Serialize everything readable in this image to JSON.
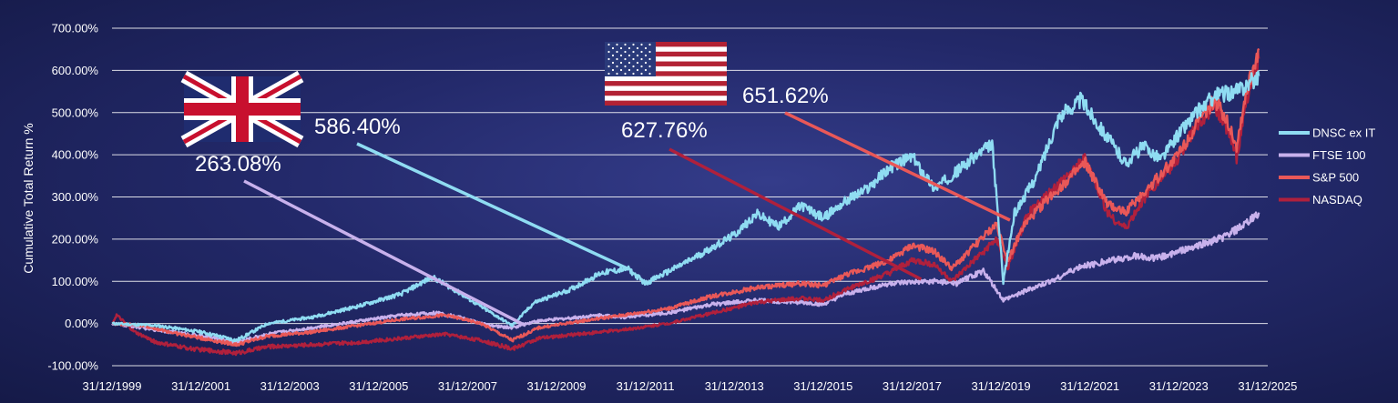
{
  "chart_data": {
    "type": "line",
    "ylabel": "Cumulative Total Return %",
    "xlabel": "",
    "ylim": [
      -100,
      700
    ],
    "y_ticks": [
      "-100.00%",
      "0.00%",
      "100.00%",
      "200.00%",
      "300.00%",
      "400.00%",
      "500.00%",
      "600.00%",
      "700.00%"
    ],
    "x_ticks": [
      "31/12/1999",
      "31/12/2001",
      "31/12/2003",
      "31/12/2005",
      "31/12/2007",
      "31/12/2009",
      "31/12/2011",
      "31/12/2013",
      "31/12/2015",
      "31/12/2017",
      "31/12/2019",
      "31/12/2021",
      "31/12/2023",
      "31/12/2025"
    ],
    "xlim": [
      1999.997,
      2026.0
    ],
    "grid": true,
    "legend_position": "right",
    "series": [
      {
        "name": "DNSC ex IT",
        "color": "#8fdcf2",
        "points": [
          [
            2000.0,
            0
          ],
          [
            2001.0,
            -5
          ],
          [
            2002.0,
            -20
          ],
          [
            2002.8,
            -40
          ],
          [
            2003.5,
            0
          ],
          [
            2004.5,
            15
          ],
          [
            2005.5,
            40
          ],
          [
            2006.5,
            70
          ],
          [
            2007.2,
            110
          ],
          [
            2007.7,
            80
          ],
          [
            2008.3,
            40
          ],
          [
            2009.0,
            -5
          ],
          [
            2009.5,
            50
          ],
          [
            2010.3,
            80
          ],
          [
            2011.0,
            120
          ],
          [
            2011.6,
            130
          ],
          [
            2012.0,
            95
          ],
          [
            2013.0,
            150
          ],
          [
            2014.0,
            210
          ],
          [
            2014.5,
            260
          ],
          [
            2015.0,
            230
          ],
          [
            2015.5,
            280
          ],
          [
            2016.0,
            250
          ],
          [
            2016.5,
            290
          ],
          [
            2017.0,
            320
          ],
          [
            2017.5,
            370
          ],
          [
            2018.0,
            395
          ],
          [
            2018.5,
            320
          ],
          [
            2019.0,
            360
          ],
          [
            2019.4,
            395
          ],
          [
            2019.8,
            425
          ],
          [
            2020.05,
            100
          ],
          [
            2020.3,
            260
          ],
          [
            2020.8,
            350
          ],
          [
            2021.3,
            490
          ],
          [
            2021.8,
            530
          ],
          [
            2022.4,
            440
          ],
          [
            2022.8,
            380
          ],
          [
            2023.2,
            420
          ],
          [
            2023.6,
            390
          ],
          [
            2024.0,
            450
          ],
          [
            2024.4,
            500
          ],
          [
            2024.8,
            540
          ],
          [
            2025.3,
            550
          ],
          [
            2025.8,
            586.4
          ]
        ]
      },
      {
        "name": "FTSE 100",
        "color": "#c8b1ec",
        "points": [
          [
            2000.0,
            0
          ],
          [
            2001.0,
            -15
          ],
          [
            2002.0,
            -30
          ],
          [
            2002.8,
            -45
          ],
          [
            2003.5,
            -25
          ],
          [
            2004.5,
            -10
          ],
          [
            2005.5,
            5
          ],
          [
            2006.5,
            20
          ],
          [
            2007.3,
            25
          ],
          [
            2007.8,
            15
          ],
          [
            2008.5,
            -5
          ],
          [
            2009.0,
            -10
          ],
          [
            2009.5,
            5
          ],
          [
            2010.5,
            15
          ],
          [
            2011.0,
            20
          ],
          [
            2011.5,
            15
          ],
          [
            2012.5,
            25
          ],
          [
            2013.5,
            45
          ],
          [
            2014.5,
            55
          ],
          [
            2015.5,
            50
          ],
          [
            2016.0,
            45
          ],
          [
            2016.5,
            70
          ],
          [
            2017.5,
            95
          ],
          [
            2018.5,
            100
          ],
          [
            2019.0,
            95
          ],
          [
            2019.6,
            125
          ],
          [
            2020.05,
            55
          ],
          [
            2020.5,
            75
          ],
          [
            2021.0,
            95
          ],
          [
            2021.8,
            135
          ],
          [
            2022.5,
            150
          ],
          [
            2023.0,
            160
          ],
          [
            2023.5,
            155
          ],
          [
            2024.0,
            170
          ],
          [
            2024.6,
            190
          ],
          [
            2025.0,
            205
          ],
          [
            2025.5,
            235
          ],
          [
            2025.8,
            263.08
          ]
        ]
      },
      {
        "name": "S&P 500",
        "color": "#e95858",
        "points": [
          [
            2000.0,
            0
          ],
          [
            2000.7,
            -5
          ],
          [
            2001.5,
            -25
          ],
          [
            2002.8,
            -50
          ],
          [
            2003.5,
            -30
          ],
          [
            2004.5,
            -20
          ],
          [
            2005.5,
            -5
          ],
          [
            2006.5,
            10
          ],
          [
            2007.5,
            20
          ],
          [
            2008.3,
            0
          ],
          [
            2009.0,
            -40
          ],
          [
            2009.6,
            -10
          ],
          [
            2010.5,
            5
          ],
          [
            2011.5,
            20
          ],
          [
            2012.5,
            35
          ],
          [
            2013.5,
            65
          ],
          [
            2014.5,
            85
          ],
          [
            2015.5,
            95
          ],
          [
            2016.0,
            90
          ],
          [
            2016.5,
            115
          ],
          [
            2017.5,
            150
          ],
          [
            2018.0,
            185
          ],
          [
            2018.5,
            170
          ],
          [
            2018.9,
            130
          ],
          [
            2019.5,
            195
          ],
          [
            2019.9,
            235
          ],
          [
            2020.15,
            150
          ],
          [
            2020.5,
            230
          ],
          [
            2021.0,
            290
          ],
          [
            2021.9,
            380
          ],
          [
            2022.4,
            280
          ],
          [
            2022.8,
            265
          ],
          [
            2023.3,
            320
          ],
          [
            2023.9,
            390
          ],
          [
            2024.4,
            470
          ],
          [
            2024.8,
            530
          ],
          [
            2025.1,
            480
          ],
          [
            2025.3,
            420
          ],
          [
            2025.5,
            540
          ],
          [
            2025.8,
            651.62
          ]
        ]
      },
      {
        "name": "NASDAQ",
        "color": "#b0203c",
        "points": [
          [
            2000.0,
            0
          ],
          [
            2000.1,
            20
          ],
          [
            2000.5,
            -20
          ],
          [
            2001.0,
            -45
          ],
          [
            2001.8,
            -60
          ],
          [
            2002.8,
            -70
          ],
          [
            2003.5,
            -55
          ],
          [
            2004.5,
            -50
          ],
          [
            2005.5,
            -45
          ],
          [
            2006.5,
            -35
          ],
          [
            2007.5,
            -25
          ],
          [
            2008.3,
            -40
          ],
          [
            2009.0,
            -60
          ],
          [
            2009.6,
            -35
          ],
          [
            2010.5,
            -25
          ],
          [
            2011.5,
            -15
          ],
          [
            2012.5,
            0
          ],
          [
            2013.5,
            25
          ],
          [
            2014.5,
            50
          ],
          [
            2015.5,
            60
          ],
          [
            2016.0,
            55
          ],
          [
            2016.5,
            80
          ],
          [
            2017.5,
            120
          ],
          [
            2018.0,
            150
          ],
          [
            2018.5,
            140
          ],
          [
            2018.9,
            100
          ],
          [
            2019.5,
            160
          ],
          [
            2019.9,
            200
          ],
          [
            2020.15,
            130
          ],
          [
            2020.6,
            260
          ],
          [
            2021.0,
            300
          ],
          [
            2021.9,
            390
          ],
          [
            2022.4,
            260
          ],
          [
            2022.8,
            225
          ],
          [
            2023.3,
            310
          ],
          [
            2023.9,
            380
          ],
          [
            2024.4,
            470
          ],
          [
            2024.8,
            520
          ],
          [
            2025.1,
            460
          ],
          [
            2025.3,
            390
          ],
          [
            2025.5,
            520
          ],
          [
            2025.8,
            627.76
          ]
        ]
      }
    ],
    "annotations": [
      {
        "text": "586.40%",
        "series": "DNSC ex IT"
      },
      {
        "text": "263.08%",
        "series": "FTSE 100"
      },
      {
        "text": "651.62%",
        "series": "S&P 500"
      },
      {
        "text": "627.76%",
        "series": "NASDAQ"
      }
    ],
    "flags": [
      "uk-flag",
      "us-flag"
    ]
  }
}
